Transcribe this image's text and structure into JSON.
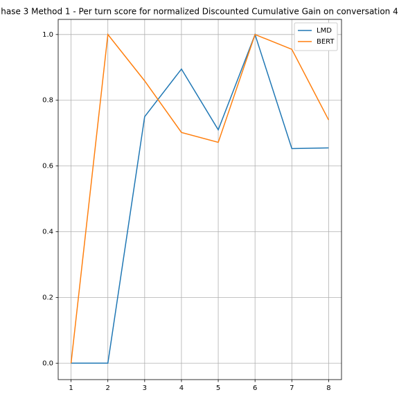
{
  "chart_data": {
    "type": "line",
    "title": "hase 3 Method 1 - Per turn score for normalized Discounted Cumulative Gain on conversation 4",
    "x": [
      1,
      2,
      3,
      4,
      5,
      6,
      7,
      8
    ],
    "series": [
      {
        "name": "LMD",
        "color": "#1f77b4",
        "values": [
          0,
          0,
          0.75,
          0.895,
          0.71,
          1.0,
          0.653,
          0.655
        ]
      },
      {
        "name": "BERT",
        "color": "#ff7f0e",
        "values": [
          0,
          1.0,
          0.859,
          0.702,
          0.672,
          1.0,
          0.955,
          0.74
        ]
      }
    ],
    "xlim": [
      0.65,
      8.35
    ],
    "xticks": [
      1,
      2,
      3,
      4,
      5,
      6,
      7,
      8
    ],
    "ylim": [
      -0.05,
      1.046
    ],
    "yticks": [
      {
        "value": 0,
        "label": "0.0"
      },
      {
        "value": 0.2,
        "label": "0.2"
      },
      {
        "value": 0.4,
        "label": "0.4"
      },
      {
        "value": 0.6,
        "label": "0.6"
      },
      {
        "value": 0.8,
        "label": "0.8"
      },
      {
        "value": 1.0,
        "label": "1.0"
      }
    ],
    "grid": true,
    "legend": "upper right"
  }
}
